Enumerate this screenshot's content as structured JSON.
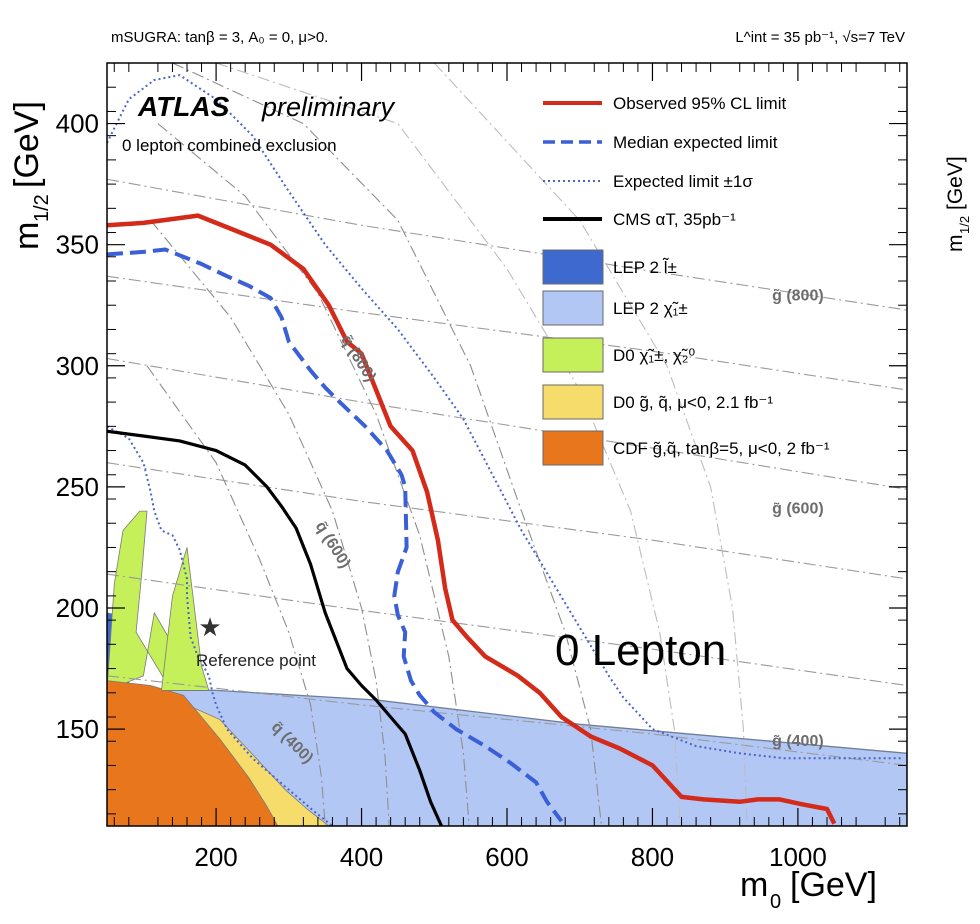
{
  "chart_data": {
    "type": "line",
    "header_left": "mSUGRA: tanβ = 3, A₀ = 0, μ>0.",
    "header_right": "L^int = 35 pb⁻¹, √s=7 TeV",
    "experiment": "ATLAS",
    "experiment_status": "preliminary",
    "analysis_label": "0 lepton combined exclusion",
    "big_label": "0 Lepton",
    "xlabel_base": "m",
    "xlabel_sub": "0",
    "xlabel_unit": "[GeV]",
    "ylabel_base": "m",
    "ylabel_sub": "1/2",
    "ylabel_unit": "[GeV]",
    "xlim": [
      50,
      1150
    ],
    "ylim": [
      110,
      425
    ],
    "x_ticks": [
      200,
      400,
      600,
      800,
      1000
    ],
    "y_ticks": [
      150,
      200,
      250,
      300,
      350,
      400
    ],
    "x_tick_labels": [
      "200",
      "400",
      "600",
      "800",
      "1000"
    ],
    "y_tick_labels": [
      "150",
      "200",
      "250",
      "300",
      "350",
      "400"
    ],
    "legend": [
      {
        "name": "Observed 95% CL limit",
        "kind": "line",
        "color": "#d42a1a",
        "style": "solid"
      },
      {
        "name": "Median expected limit",
        "kind": "line",
        "color": "#3b5fd6",
        "style": "dashed"
      },
      {
        "name": "Expected limit ±1σ",
        "kind": "line",
        "color": "#4a64c8",
        "style": "dotted"
      },
      {
        "name": "CMS αT, 35pb⁻¹",
        "kind": "line",
        "color": "#000000",
        "style": "solid"
      },
      {
        "name": "LEP 2 l̃±",
        "kind": "box",
        "color": "#3e6ad0"
      },
      {
        "name": "LEP 2 χ̃₁±",
        "kind": "box",
        "color": "#b3c7f5"
      },
      {
        "name": "D0 χ̃₁±, χ̃₂⁰",
        "kind": "box",
        "color": "#c5f05a"
      },
      {
        "name": "D0 g̃, q̃, μ<0, 2.1 fb⁻¹",
        "kind": "box",
        "color": "#f6dc6a"
      },
      {
        "name": "CDF g̃,q̃, tanβ=5, μ<0, 2 fb⁻¹",
        "kind": "box",
        "color": "#e8761c"
      }
    ],
    "reference_point": {
      "label": "Reference point",
      "x": 200,
      "y": 190
    },
    "series": [
      {
        "name": "Observed 95% CL limit",
        "color": "#d42a1a",
        "points": [
          [
            50,
            358
          ],
          [
            100,
            359
          ],
          [
            175,
            362
          ],
          [
            225,
            356
          ],
          [
            275,
            350
          ],
          [
            320,
            340
          ],
          [
            355,
            325
          ],
          [
            380,
            310
          ],
          [
            400,
            305
          ],
          [
            420,
            290
          ],
          [
            440,
            275
          ],
          [
            470,
            265
          ],
          [
            490,
            248
          ],
          [
            505,
            228
          ],
          [
            515,
            208
          ],
          [
            525,
            195
          ],
          [
            545,
            188
          ],
          [
            570,
            180
          ],
          [
            615,
            172
          ],
          [
            645,
            165
          ],
          [
            675,
            155
          ],
          [
            715,
            147
          ],
          [
            755,
            142
          ],
          [
            800,
            135
          ],
          [
            840,
            122
          ],
          [
            870,
            121
          ],
          [
            920,
            120
          ],
          [
            945,
            121
          ],
          [
            975,
            121
          ],
          [
            1005,
            119
          ],
          [
            1040,
            117
          ],
          [
            1050,
            111
          ]
        ]
      },
      {
        "name": "Median expected limit",
        "color": "#3b5fd6",
        "points": [
          [
            50,
            346
          ],
          [
            100,
            347
          ],
          [
            130,
            348
          ],
          [
            180,
            342
          ],
          [
            215,
            337
          ],
          [
            245,
            333
          ],
          [
            275,
            328
          ],
          [
            290,
            320
          ],
          [
            300,
            310
          ],
          [
            330,
            298
          ],
          [
            350,
            291
          ],
          [
            370,
            285
          ],
          [
            405,
            275
          ],
          [
            435,
            265
          ],
          [
            455,
            255
          ],
          [
            460,
            250
          ],
          [
            462,
            225
          ],
          [
            450,
            215
          ],
          [
            445,
            205
          ],
          [
            450,
            197
          ],
          [
            460,
            190
          ],
          [
            458,
            180
          ],
          [
            468,
            170
          ],
          [
            480,
            164
          ],
          [
            500,
            157
          ],
          [
            530,
            150
          ],
          [
            570,
            143
          ],
          [
            605,
            136
          ],
          [
            640,
            128
          ],
          [
            655,
            120
          ],
          [
            675,
            112
          ]
        ]
      },
      {
        "name": "Expected limit +1σ",
        "color": "#4a64c8",
        "points": [
          [
            50,
            392
          ],
          [
            80,
            410
          ],
          [
            115,
            418
          ],
          [
            150,
            420
          ],
          [
            200,
            410
          ],
          [
            250,
            395
          ],
          [
            300,
            372
          ],
          [
            350,
            350
          ],
          [
            400,
            332
          ],
          [
            450,
            315
          ],
          [
            500,
            295
          ],
          [
            540,
            278
          ],
          [
            580,
            255
          ],
          [
            620,
            232
          ],
          [
            660,
            212
          ],
          [
            700,
            192
          ],
          [
            740,
            172
          ],
          [
            760,
            163
          ],
          [
            800,
            150
          ],
          [
            860,
            143
          ],
          [
            920,
            140
          ],
          [
            980,
            138
          ],
          [
            1040,
            138
          ],
          [
            1100,
            138
          ],
          [
            1145,
            138
          ]
        ]
      },
      {
        "name": "Expected limit -1σ",
        "color": "#4a64c8",
        "points": [
          [
            50,
            275
          ],
          [
            80,
            270
          ],
          [
            100,
            260
          ],
          [
            110,
            248
          ],
          [
            115,
            240
          ],
          [
            125,
            232
          ],
          [
            140,
            230
          ],
          [
            150,
            224
          ],
          [
            160,
            212
          ],
          [
            160,
            205
          ],
          [
            165,
            188
          ],
          [
            175,
            180
          ],
          [
            190,
            172
          ],
          [
            195,
            165
          ],
          [
            200,
            160
          ],
          [
            215,
            150
          ],
          [
            250,
            138
          ],
          [
            300,
            125
          ],
          [
            335,
            116
          ],
          [
            360,
            110
          ]
        ]
      },
      {
        "name": "CMS αT, 35pb⁻¹",
        "color": "#000000",
        "points": [
          [
            50,
            273
          ],
          [
            100,
            271
          ],
          [
            150,
            269
          ],
          [
            200,
            265
          ],
          [
            240,
            259
          ],
          [
            270,
            250
          ],
          [
            290,
            242
          ],
          [
            310,
            233
          ],
          [
            330,
            218
          ],
          [
            350,
            198
          ],
          [
            380,
            175
          ],
          [
            400,
            168
          ],
          [
            420,
            162
          ],
          [
            440,
            155
          ],
          [
            460,
            148
          ],
          [
            480,
            133
          ],
          [
            495,
            120
          ],
          [
            510,
            110
          ]
        ]
      }
    ],
    "regions": [
      {
        "name": "LEP 2 χ̃₁±",
        "color": "#b3c7f5"
      },
      {
        "name": "LEP 2 l̃±",
        "color": "#3e6ad0"
      },
      {
        "name": "D0 χ̃₁±, χ̃₂⁰",
        "color": "#c5f05a"
      },
      {
        "name": "D0 g̃, q̃, μ<0, 2.1 fb⁻¹",
        "color": "#f6dc6a"
      },
      {
        "name": "CDF g̃,q̃, tanβ=5, μ<0, 2 fb⁻¹",
        "color": "#e8761c"
      }
    ],
    "iso_mass_labels": [
      {
        "text": "q̃ (800)",
        "x": 390,
        "y": 302
      },
      {
        "text": "q̃ (600)",
        "x": 355,
        "y": 225
      },
      {
        "text": "q̃ (400)",
        "x": 300,
        "y": 143
      },
      {
        "text": "g̃ (800)",
        "x": 1000,
        "y": 327
      },
      {
        "text": "g̃ (600)",
        "x": 1000,
        "y": 239
      },
      {
        "text": "g̃ (400)",
        "x": 1000,
        "y": 143
      }
    ]
  }
}
